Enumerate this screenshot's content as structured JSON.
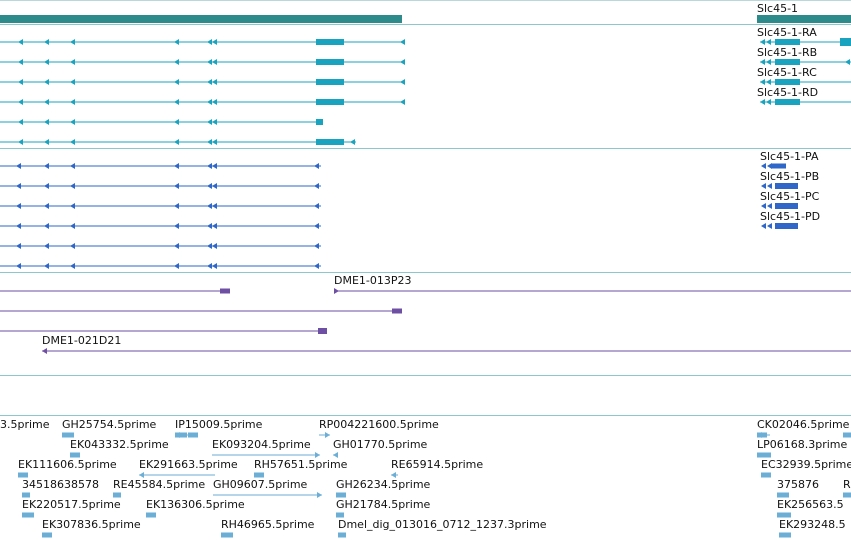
{
  "colors": {
    "gene": "#2e8b8b",
    "transcript": "#1aa3bf",
    "protein": "#2f67c9",
    "clone": "#6d4fa3",
    "est": "#6baed6",
    "divider": "#8cc7cc"
  },
  "gene": {
    "name": "Slc45-1"
  },
  "transcripts": [
    "Slc45-1-RA",
    "Slc45-1-RB",
    "Slc45-1-RC",
    "Slc45-1-RD"
  ],
  "proteins": [
    "Slc45-1-PA",
    "Slc45-1-PB",
    "Slc45-1-PC",
    "Slc45-1-PD"
  ],
  "clones": [
    "DME1-013P23",
    "DME1-021D21"
  ],
  "ests": [
    "3.5prime",
    "GH25754.5prime",
    "IP15009.5prime",
    "RP004221600.5prime",
    "CK02046.5prime",
    "EK043332.5prime",
    "EK093204.5prime",
    "GH01770.5prime",
    "LP06168.3prime",
    "EK111606.5prime",
    "EK291663.5prime",
    "RH57651.5prime",
    "RE65914.5prime",
    "EC32939.5prime",
    "34518638578",
    "RE45584.5prime",
    "GH09607.5prime",
    "GH26234.5prime",
    "375876",
    "R",
    "EK220517.5prime",
    "EK136306.5prime",
    "GH21784.5prime",
    "EK256563.5",
    "EK307836.5prime",
    "RH46965.5prime",
    "Dmel_dig_013016_0712_1237.3prime",
    "EK293248.5"
  ]
}
